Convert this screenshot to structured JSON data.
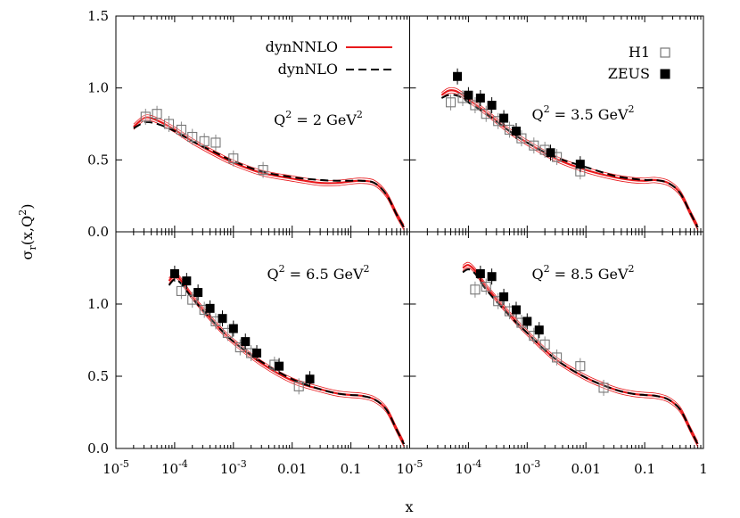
{
  "chart_data": {
    "type": "line",
    "xlabel": "x",
    "ylabel": "σr(x,Q2)",
    "x_scale": "log",
    "y_ticks": [
      "0.0",
      "0.5",
      "1.0",
      "1.5"
    ],
    "x_ticks": [
      {
        "value": 1e-05,
        "base": "10",
        "exp": "-5"
      },
      {
        "value": 0.0001,
        "base": "10",
        "exp": "-4"
      },
      {
        "value": 0.001,
        "base": "10",
        "exp": "-3"
      },
      {
        "value": 0.01,
        "label": "0.01"
      },
      {
        "value": 0.1,
        "label": "0.1"
      },
      {
        "value": 1,
        "label": "1"
      }
    ],
    "legend": [
      {
        "name": "dynNNLO",
        "color": "#e8191c",
        "style": "solid"
      },
      {
        "name": "dynNLO",
        "color": "#000000",
        "style": "dashed"
      },
      {
        "name": "H1",
        "marker": "open-square"
      },
      {
        "name": "ZEUS",
        "marker": "filled-square"
      }
    ],
    "panels": [
      {
        "id": "q2-2",
        "label": "Q2 = 2 GeV2",
        "label_text": {
          "q": "Q",
          "q_exp": "2",
          "mid": " = 2 GeV",
          "unit_exp": "2"
        },
        "xlim": [
          1e-05,
          1
        ],
        "ylim": [
          0,
          1.5
        ],
        "nnlo": [
          [
            2e-05,
            0.73
          ],
          [
            3e-05,
            0.79
          ],
          [
            4e-05,
            0.79
          ],
          [
            6e-05,
            0.76
          ],
          [
            0.0001,
            0.71
          ],
          [
            0.0002,
            0.63
          ],
          [
            0.0005,
            0.54
          ],
          [
            0.001,
            0.48
          ],
          [
            0.003,
            0.41
          ],
          [
            0.01,
            0.37
          ],
          [
            0.03,
            0.34
          ],
          [
            0.06,
            0.34
          ],
          [
            0.1,
            0.35
          ],
          [
            0.15,
            0.355
          ],
          [
            0.25,
            0.34
          ],
          [
            0.4,
            0.26
          ],
          [
            0.6,
            0.12
          ],
          [
            0.8,
            0.03
          ]
        ],
        "nlo": [
          [
            2e-05,
            0.72
          ],
          [
            3e-05,
            0.76
          ],
          [
            4e-05,
            0.76
          ],
          [
            6e-05,
            0.74
          ],
          [
            0.0001,
            0.7
          ],
          [
            0.0002,
            0.63
          ],
          [
            0.0005,
            0.55
          ],
          [
            0.001,
            0.49
          ],
          [
            0.003,
            0.42
          ],
          [
            0.01,
            0.38
          ],
          [
            0.03,
            0.36
          ],
          [
            0.06,
            0.355
          ],
          [
            0.1,
            0.355
          ],
          [
            0.15,
            0.355
          ],
          [
            0.25,
            0.34
          ],
          [
            0.4,
            0.26
          ],
          [
            0.6,
            0.12
          ],
          [
            0.8,
            0.03
          ]
        ],
        "h1": [
          [
            3.2e-05,
            0.8
          ],
          [
            5e-05,
            0.82
          ],
          [
            8e-05,
            0.75
          ],
          [
            0.00013,
            0.71
          ],
          [
            0.0002,
            0.66
          ],
          [
            0.00032,
            0.63
          ],
          [
            0.0005,
            0.62
          ],
          [
            0.001,
            0.51
          ],
          [
            0.0032,
            0.43
          ]
        ],
        "zeus": []
      },
      {
        "id": "q2-3p5",
        "label": "Q2 = 3.5 GeV2",
        "label_text": {
          "q": "Q",
          "q_exp": "2",
          "mid": " = 3.5 GeV",
          "unit_exp": "2"
        },
        "xlim": [
          1e-05,
          1
        ],
        "ylim": [
          0,
          1.5
        ],
        "nnlo": [
          [
            3.5e-05,
            0.95
          ],
          [
            4.5e-05,
            0.98
          ],
          [
            6e-05,
            0.98
          ],
          [
            8e-05,
            0.95
          ],
          [
            0.0001,
            0.92
          ],
          [
            0.0002,
            0.83
          ],
          [
            0.0005,
            0.7
          ],
          [
            0.001,
            0.62
          ],
          [
            0.003,
            0.51
          ],
          [
            0.01,
            0.43
          ],
          [
            0.03,
            0.38
          ],
          [
            0.06,
            0.36
          ],
          [
            0.1,
            0.355
          ],
          [
            0.15,
            0.36
          ],
          [
            0.25,
            0.34
          ],
          [
            0.4,
            0.27
          ],
          [
            0.6,
            0.13
          ],
          [
            0.8,
            0.03
          ]
        ],
        "nlo": [
          [
            3.5e-05,
            0.93
          ],
          [
            4.5e-05,
            0.95
          ],
          [
            6e-05,
            0.95
          ],
          [
            8e-05,
            0.93
          ],
          [
            0.0001,
            0.9
          ],
          [
            0.0002,
            0.82
          ],
          [
            0.0005,
            0.7
          ],
          [
            0.001,
            0.62
          ],
          [
            0.003,
            0.52
          ],
          [
            0.01,
            0.45
          ],
          [
            0.03,
            0.39
          ],
          [
            0.06,
            0.37
          ],
          [
            0.1,
            0.36
          ],
          [
            0.15,
            0.36
          ],
          [
            0.25,
            0.34
          ],
          [
            0.4,
            0.27
          ],
          [
            0.6,
            0.13
          ],
          [
            0.8,
            0.03
          ]
        ],
        "h1": [
          [
            5e-05,
            0.9
          ],
          [
            8e-05,
            0.93
          ],
          [
            0.00013,
            0.88
          ],
          [
            0.0002,
            0.82
          ],
          [
            0.00032,
            0.77
          ],
          [
            0.0005,
            0.71
          ],
          [
            0.0008,
            0.65
          ],
          [
            0.0013,
            0.6
          ],
          [
            0.002,
            0.57
          ],
          [
            0.0032,
            0.52
          ],
          [
            0.008,
            0.42
          ]
        ],
        "zeus": [
          [
            6.5e-05,
            1.08
          ],
          [
            0.0001,
            0.95
          ],
          [
            0.00016,
            0.93
          ],
          [
            0.00025,
            0.88
          ],
          [
            0.0004,
            0.79
          ],
          [
            0.00065,
            0.7
          ],
          [
            0.0025,
            0.55
          ],
          [
            0.008,
            0.47
          ]
        ]
      },
      {
        "id": "q2-6p5",
        "label": "Q2 = 6.5 GeV2",
        "label_text": {
          "q": "Q",
          "q_exp": "2",
          "mid": " = 6.5 GeV",
          "unit_exp": "2"
        },
        "xlim": [
          1e-05,
          1
        ],
        "ylim": [
          0,
          1.5
        ],
        "nnlo": [
          [
            8e-05,
            1.16
          ],
          [
            0.0001,
            1.2
          ],
          [
            0.00013,
            1.16
          ],
          [
            0.0002,
            1.05
          ],
          [
            0.0005,
            0.86
          ],
          [
            0.001,
            0.74
          ],
          [
            0.003,
            0.59
          ],
          [
            0.01,
            0.47
          ],
          [
            0.03,
            0.41
          ],
          [
            0.06,
            0.38
          ],
          [
            0.1,
            0.37
          ],
          [
            0.15,
            0.365
          ],
          [
            0.25,
            0.34
          ],
          [
            0.4,
            0.27
          ],
          [
            0.6,
            0.13
          ],
          [
            0.8,
            0.03
          ]
        ],
        "nlo": [
          [
            8e-05,
            1.13
          ],
          [
            0.0001,
            1.17
          ],
          [
            0.00013,
            1.14
          ],
          [
            0.0002,
            1.04
          ],
          [
            0.0005,
            0.86
          ],
          [
            0.001,
            0.74
          ],
          [
            0.003,
            0.6
          ],
          [
            0.01,
            0.48
          ],
          [
            0.03,
            0.41
          ],
          [
            0.06,
            0.38
          ],
          [
            0.1,
            0.37
          ],
          [
            0.15,
            0.365
          ],
          [
            0.25,
            0.34
          ],
          [
            0.4,
            0.27
          ],
          [
            0.6,
            0.13
          ],
          [
            0.8,
            0.03
          ]
        ],
        "h1": [
          [
            0.00013,
            1.09
          ],
          [
            0.0002,
            1.03
          ],
          [
            0.00032,
            0.96
          ],
          [
            0.0005,
            0.88
          ],
          [
            0.0008,
            0.8
          ],
          [
            0.0013,
            0.7
          ],
          [
            0.002,
            0.66
          ],
          [
            0.005,
            0.58
          ],
          [
            0.013,
            0.43
          ]
        ],
        "zeus": [
          [
            0.0001,
            1.21
          ],
          [
            0.00016,
            1.16
          ],
          [
            0.00025,
            1.08
          ],
          [
            0.0004,
            0.97
          ],
          [
            0.00065,
            0.9
          ],
          [
            0.001,
            0.83
          ],
          [
            0.0016,
            0.74
          ],
          [
            0.0025,
            0.66
          ],
          [
            0.006,
            0.57
          ],
          [
            0.02,
            0.48
          ]
        ]
      },
      {
        "id": "q2-8p5",
        "label": "Q2 = 8.5 GeV2",
        "label_text": {
          "q": "Q",
          "q_exp": "2",
          "mid": " = 8.5 GeV",
          "unit_exp": "2"
        },
        "xlim": [
          1e-05,
          1
        ],
        "ylim": [
          0,
          1.5
        ],
        "nnlo": [
          [
            8e-05,
            1.25
          ],
          [
            0.0001,
            1.27
          ],
          [
            0.00013,
            1.23
          ],
          [
            0.0002,
            1.12
          ],
          [
            0.0005,
            0.93
          ],
          [
            0.001,
            0.8
          ],
          [
            0.003,
            0.62
          ],
          [
            0.01,
            0.49
          ],
          [
            0.03,
            0.41
          ],
          [
            0.06,
            0.38
          ],
          [
            0.1,
            0.37
          ],
          [
            0.15,
            0.365
          ],
          [
            0.25,
            0.34
          ],
          [
            0.4,
            0.27
          ],
          [
            0.6,
            0.13
          ],
          [
            0.8,
            0.03
          ]
        ],
        "nlo": [
          [
            8e-05,
            1.22
          ],
          [
            0.0001,
            1.24
          ],
          [
            0.00013,
            1.21
          ],
          [
            0.0002,
            1.1
          ],
          [
            0.0005,
            0.92
          ],
          [
            0.001,
            0.8
          ],
          [
            0.003,
            0.62
          ],
          [
            0.01,
            0.49
          ],
          [
            0.03,
            0.41
          ],
          [
            0.06,
            0.38
          ],
          [
            0.1,
            0.37
          ],
          [
            0.15,
            0.365
          ],
          [
            0.25,
            0.34
          ],
          [
            0.4,
            0.27
          ],
          [
            0.6,
            0.13
          ],
          [
            0.8,
            0.03
          ]
        ],
        "h1": [
          [
            0.00013,
            1.1
          ],
          [
            0.0002,
            1.12
          ],
          [
            0.00032,
            1.02
          ],
          [
            0.0005,
            0.95
          ],
          [
            0.0008,
            0.87
          ],
          [
            0.0013,
            0.78
          ],
          [
            0.002,
            0.72
          ],
          [
            0.0032,
            0.63
          ],
          [
            0.008,
            0.57
          ],
          [
            0.02,
            0.42
          ]
        ],
        "zeus": [
          [
            0.00016,
            1.21
          ],
          [
            0.00025,
            1.19
          ],
          [
            0.0004,
            1.05
          ],
          [
            0.00065,
            0.96
          ],
          [
            0.001,
            0.88
          ],
          [
            0.0016,
            0.82
          ]
        ]
      }
    ]
  }
}
